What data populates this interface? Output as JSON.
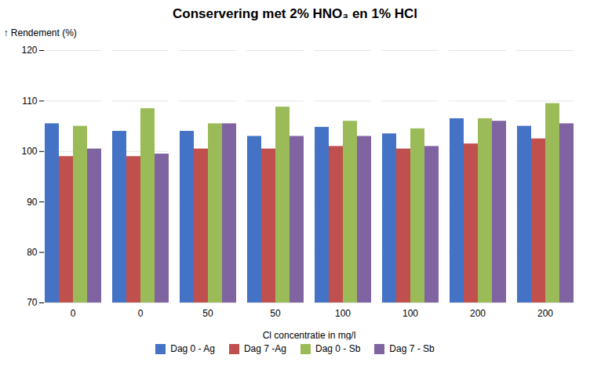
{
  "chart_data": {
    "type": "bar",
    "title": "Conservering met 2% HNO₃ en 1% HCl",
    "xlabel": "Cl concentratie in mg/l",
    "ylabel": "Rendement (%)",
    "categories": [
      "0",
      "0",
      "50",
      "50",
      "100",
      "100",
      "200",
      "200"
    ],
    "series": [
      {
        "name": "Dag 0 - Ag",
        "color": "#4472C4",
        "values": [
          105.5,
          104.0,
          104.0,
          103.0,
          104.8,
          103.5,
          106.5,
          105.0
        ]
      },
      {
        "name": "Dag 7 -Ag",
        "color": "#C0504D",
        "values": [
          99.0,
          99.0,
          100.5,
          100.5,
          101.0,
          100.5,
          101.5,
          102.5
        ]
      },
      {
        "name": "Dag 0 - Sb",
        "color": "#9BBB59",
        "values": [
          105.0,
          108.5,
          105.5,
          108.8,
          106.0,
          104.5,
          106.5,
          109.5
        ]
      },
      {
        "name": "Dag 7 - Sb",
        "color": "#8064A2",
        "values": [
          100.5,
          99.5,
          105.5,
          103.0,
          103.0,
          101.0,
          106.0,
          105.5
        ]
      }
    ],
    "ylim": [
      70,
      120
    ],
    "yticks": [
      70,
      80,
      90,
      100,
      110,
      120
    ],
    "grid": true,
    "legend": "bottom"
  }
}
